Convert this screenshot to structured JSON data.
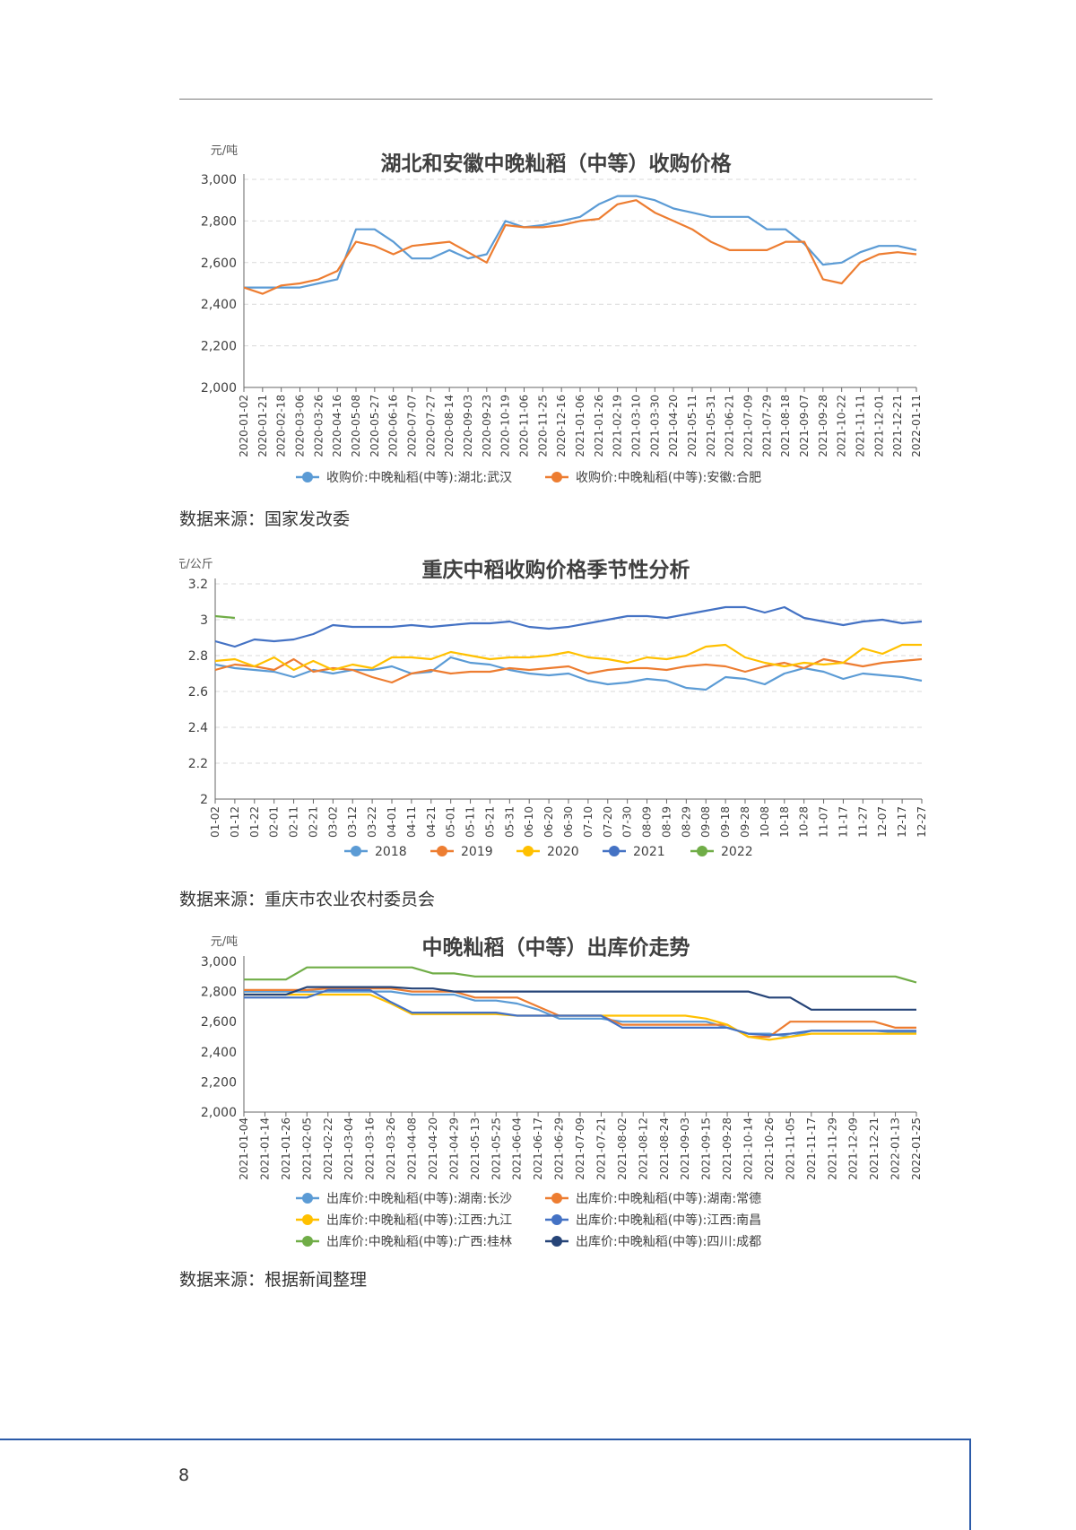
{
  "page": {
    "number": "8"
  },
  "colors": {
    "blue": "#5b9bd5",
    "orange": "#ed7d31",
    "yellow": "#ffc000",
    "darkblue": "#4472c4",
    "green": "#70ad47",
    "navy": "#264478",
    "grid": "#d9d9d9",
    "axis": "#666666"
  },
  "charts": [
    {
      "id": "chart1",
      "source": "数据来源：国家发改委",
      "chart_data": {
        "type": "line",
        "title": "湖北和安徽中晚籼稻（中等）收购价格",
        "unit_label": "元/吨",
        "ylim": [
          2000,
          3000
        ],
        "yticks": [
          "2,000",
          "2,200",
          "2,400",
          "2,600",
          "2,800",
          "3,000"
        ],
        "ytick_values": [
          2000,
          2200,
          2400,
          2600,
          2800,
          3000
        ],
        "grid": true,
        "legend_position": "bottom",
        "x_labels": [
          "2020-01-02",
          "2020-01-21",
          "2020-02-18",
          "2020-03-06",
          "2020-03-26",
          "2020-04-16",
          "2020-05-08",
          "2020-05-27",
          "2020-06-16",
          "2020-07-07",
          "2020-07-27",
          "2020-08-14",
          "2020-09-03",
          "2020-09-23",
          "2020-10-19",
          "2020-11-06",
          "2020-11-25",
          "2020-12-16",
          "2021-01-06",
          "2021-01-26",
          "2021-02-19",
          "2021-03-10",
          "2021-03-30",
          "2021-04-20",
          "2021-05-11",
          "2021-05-31",
          "2021-06-21",
          "2021-07-09",
          "2021-07-29",
          "2021-08-18",
          "2021-09-07",
          "2021-09-28",
          "2021-10-22",
          "2021-11-11",
          "2021-12-01",
          "2021-12-21",
          "2022-01-11"
        ],
        "series": [
          {
            "name": "收购价:中晚籼稻(中等):湖北:武汉",
            "color": "#5b9bd5",
            "values": [
              2480,
              2480,
              2480,
              2480,
              2500,
              2520,
              2760,
              2760,
              2700,
              2620,
              2620,
              2660,
              2620,
              2640,
              2800,
              2770,
              2780,
              2800,
              2820,
              2880,
              2920,
              2920,
              2900,
              2860,
              2840,
              2820,
              2820,
              2820,
              2760,
              2760,
              2690,
              2590,
              2600,
              2650,
              2680,
              2680,
              2660
            ]
          },
          {
            "name": "收购价:中晚籼稻(中等):安徽:合肥",
            "color": "#ed7d31",
            "values": [
              2480,
              2450,
              2490,
              2500,
              2520,
              2560,
              2700,
              2680,
              2640,
              2680,
              2690,
              2700,
              2650,
              2600,
              2780,
              2770,
              2770,
              2780,
              2800,
              2810,
              2880,
              2900,
              2840,
              2800,
              2760,
              2700,
              2660,
              2660,
              2660,
              2700,
              2700,
              2520,
              2500,
              2600,
              2640,
              2650,
              2640
            ]
          }
        ]
      }
    },
    {
      "id": "chart2",
      "source": "数据来源：重庆市农业农村委员会",
      "chart_data": {
        "type": "line",
        "title": "重庆中稻收购价格季节性分析",
        "unit_label": "元/公斤",
        "ylim": [
          2,
          3.2
        ],
        "yticks": [
          "2",
          "2.2",
          "2.4",
          "2.6",
          "2.8",
          "3",
          "3.2"
        ],
        "ytick_values": [
          2,
          2.2,
          2.4,
          2.6,
          2.8,
          3,
          3.2
        ],
        "grid": true,
        "legend_position": "bottom",
        "x_labels": [
          "01-02",
          "01-12",
          "01-22",
          "02-01",
          "02-11",
          "02-21",
          "03-02",
          "03-12",
          "03-22",
          "04-01",
          "04-11",
          "04-21",
          "05-01",
          "05-11",
          "05-21",
          "05-31",
          "06-10",
          "06-20",
          "06-30",
          "07-10",
          "07-20",
          "07-30",
          "08-09",
          "08-19",
          "08-29",
          "09-08",
          "09-18",
          "09-28",
          "10-08",
          "10-18",
          "10-28",
          "11-07",
          "11-17",
          "11-27",
          "12-07",
          "12-17",
          "12-27"
        ],
        "series": [
          {
            "name": "2018",
            "color": "#5b9bd5",
            "values": [
              2.75,
              2.73,
              2.72,
              2.71,
              2.68,
              2.72,
              2.7,
              2.72,
              2.72,
              2.74,
              2.7,
              2.71,
              2.79,
              2.76,
              2.75,
              2.72,
              2.7,
              2.69,
              2.7,
              2.66,
              2.64,
              2.65,
              2.67,
              2.66,
              2.62,
              2.61,
              2.68,
              2.67,
              2.64,
              2.7,
              2.73,
              2.71,
              2.67,
              2.7,
              2.69,
              2.68,
              2.66
            ]
          },
          {
            "name": "2019",
            "color": "#ed7d31",
            "values": [
              2.72,
              2.75,
              2.74,
              2.72,
              2.78,
              2.71,
              2.73,
              2.72,
              2.68,
              2.65,
              2.7,
              2.72,
              2.7,
              2.71,
              2.71,
              2.73,
              2.72,
              2.73,
              2.74,
              2.7,
              2.72,
              2.73,
              2.73,
              2.72,
              2.74,
              2.75,
              2.74,
              2.71,
              2.74,
              2.76,
              2.73,
              2.78,
              2.76,
              2.74,
              2.76,
              2.77,
              2.78
            ]
          },
          {
            "name": "2020",
            "color": "#ffc000",
            "values": [
              2.77,
              2.78,
              2.74,
              2.79,
              2.72,
              2.77,
              2.72,
              2.75,
              2.73,
              2.79,
              2.79,
              2.78,
              2.82,
              2.8,
              2.78,
              2.79,
              2.79,
              2.8,
              2.82,
              2.79,
              2.78,
              2.76,
              2.79,
              2.78,
              2.8,
              2.85,
              2.86,
              2.79,
              2.76,
              2.74,
              2.76,
              2.75,
              2.76,
              2.84,
              2.81,
              2.86,
              2.86
            ]
          },
          {
            "name": "2021",
            "color": "#4472c4",
            "values": [
              2.88,
              2.85,
              2.89,
              2.88,
              2.89,
              2.92,
              2.97,
              2.96,
              2.96,
              2.96,
              2.97,
              2.96,
              2.97,
              2.98,
              2.98,
              2.99,
              2.96,
              2.95,
              2.96,
              2.98,
              3.0,
              3.02,
              3.02,
              3.01,
              3.03,
              3.05,
              3.07,
              3.07,
              3.04,
              3.07,
              3.01,
              2.99,
              2.97,
              2.99,
              3.0,
              2.98,
              2.99
            ]
          },
          {
            "name": "2022",
            "color": "#70ad47",
            "values": [
              3.02,
              3.01
            ]
          }
        ]
      }
    },
    {
      "id": "chart3",
      "source": "数据来源：根据新闻整理",
      "chart_data": {
        "type": "line",
        "title": "中晚籼稻（中等）出库价走势",
        "unit_label": "元/吨",
        "ylim": [
          2000,
          3000
        ],
        "yticks": [
          "2,000",
          "2,200",
          "2,400",
          "2,600",
          "2,800",
          "3,000"
        ],
        "ytick_values": [
          2000,
          2200,
          2400,
          2600,
          2800,
          3000
        ],
        "grid": false,
        "legend_position": "bottom",
        "x_labels": [
          "2021-01-04",
          "2021-01-14",
          "2021-01-26",
          "2021-02-05",
          "2021-02-22",
          "2021-03-04",
          "2021-03-16",
          "2021-03-26",
          "2021-04-08",
          "2021-04-20",
          "2021-04-29",
          "2021-05-13",
          "2021-05-25",
          "2021-06-04",
          "2021-06-17",
          "2021-06-29",
          "2021-07-09",
          "2021-07-21",
          "2021-08-02",
          "2021-08-12",
          "2021-08-24",
          "2021-09-03",
          "2021-09-15",
          "2021-09-28",
          "2021-10-14",
          "2021-10-26",
          "2021-11-05",
          "2021-11-17",
          "2021-11-29",
          "2021-12-09",
          "2021-12-21",
          "2022-01-13",
          "2022-01-25"
        ],
        "series": [
          {
            "name": "出库价:中晚籼稻(中等):湖南:长沙",
            "color": "#5b9bd5",
            "values": [
              2800,
              2800,
              2800,
              2800,
              2800,
              2800,
              2800,
              2800,
              2780,
              2780,
              2780,
              2740,
              2740,
              2720,
              2680,
              2620,
              2620,
              2620,
              2600,
              2600,
              2600,
              2600,
              2600,
              2560,
              2520,
              2520,
              2500,
              2540,
              2540,
              2540,
              2540,
              2530,
              2530
            ]
          },
          {
            "name": "出库价:中晚籼稻(中等):湖南:常德",
            "color": "#ed7d31",
            "values": [
              2810,
              2810,
              2810,
              2810,
              2820,
              2820,
              2820,
              2820,
              2800,
              2800,
              2800,
              2760,
              2760,
              2760,
              2700,
              2640,
              2640,
              2640,
              2580,
              2580,
              2580,
              2580,
              2580,
              2580,
              2500,
              2500,
              2600,
              2600,
              2600,
              2600,
              2600,
              2560,
              2560
            ]
          },
          {
            "name": "出库价:中晚籼稻(中等):江西:九江",
            "color": "#ffc000",
            "values": [
              2780,
              2780,
              2780,
              2780,
              2780,
              2780,
              2780,
              2720,
              2650,
              2650,
              2650,
              2650,
              2650,
              2640,
              2640,
              2640,
              2640,
              2640,
              2640,
              2640,
              2640,
              2640,
              2620,
              2580,
              2500,
              2480,
              2500,
              2520,
              2520,
              2520,
              2520,
              2520,
              2520
            ]
          },
          {
            "name": "出库价:中晚籼稻(中等):江西:南昌",
            "color": "#4472c4",
            "values": [
              2760,
              2760,
              2760,
              2760,
              2810,
              2810,
              2810,
              2730,
              2660,
              2660,
              2660,
              2660,
              2660,
              2640,
              2640,
              2640,
              2640,
              2640,
              2560,
              2560,
              2560,
              2560,
              2560,
              2560,
              2520,
              2510,
              2520,
              2540,
              2540,
              2540,
              2540,
              2540,
              2540
            ]
          },
          {
            "name": "出库价:中晚籼稻(中等):广西:桂林",
            "color": "#70ad47",
            "values": [
              2880,
              2880,
              2880,
              2960,
              2960,
              2960,
              2960,
              2960,
              2960,
              2920,
              2920,
              2900,
              2900,
              2900,
              2900,
              2900,
              2900,
              2900,
              2900,
              2900,
              2900,
              2900,
              2900,
              2900,
              2900,
              2900,
              2900,
              2900,
              2900,
              2900,
              2900,
              2900,
              2860
            ]
          },
          {
            "name": "出库价:中晚籼稻(中等):四川:成都",
            "color": "#264478",
            "values": [
              2780,
              2780,
              2780,
              2830,
              2830,
              2830,
              2830,
              2830,
              2820,
              2820,
              2800,
              2800,
              2800,
              2800,
              2800,
              2800,
              2800,
              2800,
              2800,
              2800,
              2800,
              2800,
              2800,
              2800,
              2800,
              2760,
              2760,
              2680,
              2680,
              2680,
              2680,
              2680,
              2680
            ]
          }
        ]
      }
    }
  ]
}
